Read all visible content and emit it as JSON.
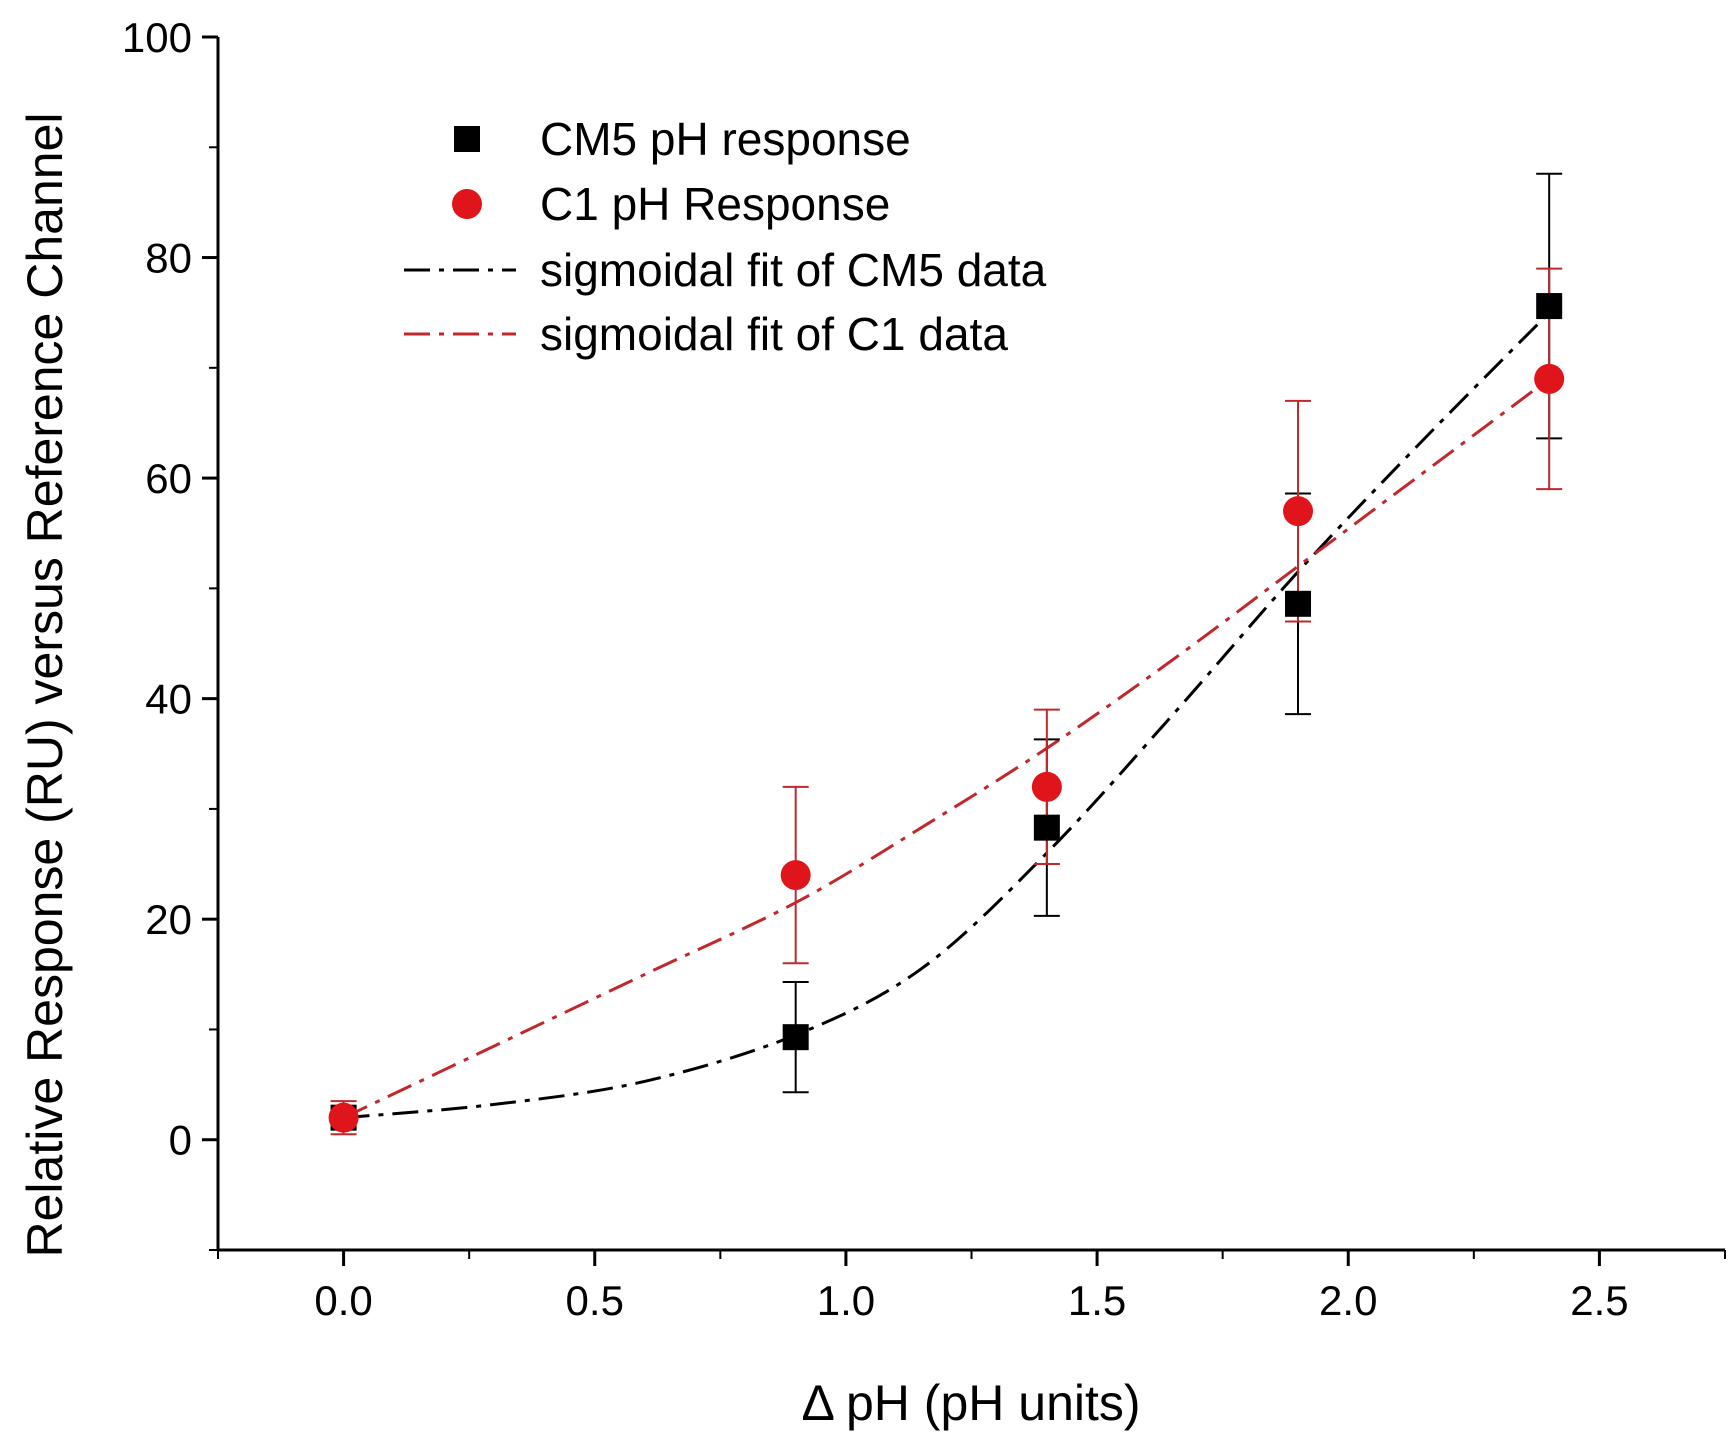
{
  "chart_data": {
    "type": "scatter",
    "title": "",
    "xlabel": "Δ pH (pH units)",
    "ylabel": "Relative Response (RU) versus Reference Channel",
    "xlim": [
      -0.25,
      2.75
    ],
    "ylim": [
      -10,
      100
    ],
    "x_ticks": [
      0.0,
      0.5,
      1.0,
      1.5,
      2.0,
      2.5
    ],
    "x_tick_labels": [
      "0.0",
      "0.5",
      "1.0",
      "1.5",
      "2.0",
      "2.5"
    ],
    "y_ticks": [
      0,
      20,
      40,
      60,
      80,
      100
    ],
    "y_tick_labels": [
      "0",
      "20",
      "40",
      "60",
      "80",
      "100"
    ],
    "grid": false,
    "legend_position": "top-left",
    "series": [
      {
        "name": "CM5 pH response",
        "kind": "points",
        "marker": "square",
        "color": "#000000",
        "x": [
          0.0,
          0.9,
          1.4,
          1.9,
          2.4
        ],
        "y": [
          2.0,
          9.3,
          28.3,
          48.6,
          75.6
        ],
        "error": [
          1.0,
          5.0,
          8.0,
          10.0,
          12.0
        ]
      },
      {
        "name": "C1 pH Response",
        "kind": "points",
        "marker": "circle",
        "color": "#e0151b",
        "x": [
          0.0,
          0.9,
          1.4,
          1.9,
          2.4
        ],
        "y": [
          2.0,
          24.0,
          32.0,
          57.0,
          69.0
        ],
        "error": [
          1.5,
          8.0,
          7.0,
          10.0,
          10.0
        ]
      },
      {
        "name": "sigmoidal fit of CM5 data",
        "kind": "fit",
        "dash": "dash-dot",
        "color": "#000000",
        "x": [
          0.0,
          0.3,
          0.6,
          0.9,
          1.15,
          1.4,
          1.65,
          1.9,
          2.15,
          2.4
        ],
        "y": [
          2.0,
          3.2,
          5.3,
          9.5,
          15.5,
          26.0,
          38.5,
          51.5,
          63.5,
          75.0
        ]
      },
      {
        "name": "sigmoidal fit of C1 data",
        "kind": "fit",
        "dash": "dash-dot",
        "color": "#c0282d",
        "x": [
          0.0,
          0.3,
          0.6,
          0.9,
          1.15,
          1.4,
          1.65,
          1.9,
          2.15,
          2.4
        ],
        "y": [
          2.0,
          8.5,
          15.0,
          21.5,
          28.3,
          35.5,
          43.5,
          52.0,
          60.5,
          69.0
        ]
      }
    ]
  }
}
